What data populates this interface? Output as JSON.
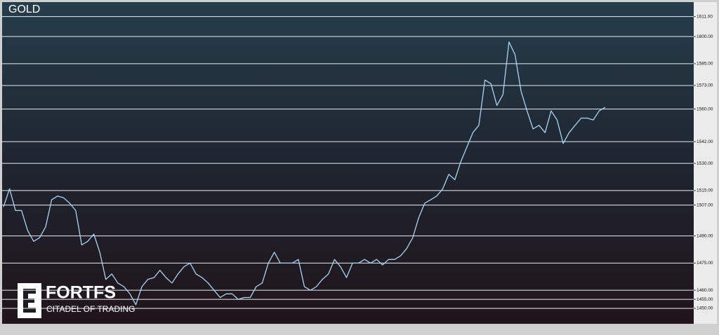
{
  "chart_data": {
    "type": "line",
    "title": "GOLD",
    "watermark": {
      "name": "FORTFS",
      "tagline": "CITADEL OF TRADING"
    },
    "series": [
      {
        "color": "#a9d3f5",
        "values": [
          1506,
          1516,
          1504,
          1504,
          1493,
          1487,
          1489,
          1495,
          1510,
          1512,
          1511,
          1508,
          1504,
          1485,
          1487,
          1491,
          1481,
          1466,
          1469,
          1464,
          1462,
          1458,
          1452,
          1462,
          1466,
          1467,
          1471,
          1467,
          1464,
          1469,
          1473,
          1475,
          1469,
          1467,
          1464,
          1460,
          1456,
          1458,
          1458,
          1455,
          1456,
          1456,
          1462,
          1464,
          1475,
          1481,
          1475,
          1475,
          1475,
          1477,
          1462,
          1460,
          1462,
          1466,
          1469,
          1477,
          1473,
          1467,
          1475,
          1475,
          1477,
          1475,
          1477,
          1474,
          1477,
          1477,
          1479,
          1483,
          1489,
          1500,
          1508,
          1510,
          1512,
          1516,
          1524,
          1521,
          1531,
          1539,
          1547,
          1551,
          1576,
          1574,
          1562,
          1568,
          1597,
          1590,
          1570,
          1559,
          1549,
          1551,
          1547,
          1559,
          1554,
          1541,
          1547,
          1551,
          1555,
          1555,
          1554,
          1559,
          1561
        ]
      }
    ],
    "ylim": [
      1441.5,
      1619
    ],
    "yticks": [
      {
        "value": 1611,
        "label": "1611.00"
      },
      {
        "value": 1600,
        "label": "1600.00"
      },
      {
        "value": 1585,
        "label": "1585.00"
      },
      {
        "value": 1573,
        "label": "1573.00"
      },
      {
        "value": 1560,
        "label": "1560.00"
      },
      {
        "value": 1542,
        "label": "1542.00"
      },
      {
        "value": 1530,
        "label": "1530.00"
      },
      {
        "value": 1515,
        "label": "1515.00"
      },
      {
        "value": 1507,
        "label": "1507.00"
      },
      {
        "value": 1490,
        "label": "1490.00"
      },
      {
        "value": 1475,
        "label": "1475.00"
      },
      {
        "value": 1460,
        "label": "1460.00"
      },
      {
        "value": 1455,
        "label": "1455.00"
      },
      {
        "value": 1450,
        "label": "1450.00"
      }
    ],
    "grid": true
  }
}
